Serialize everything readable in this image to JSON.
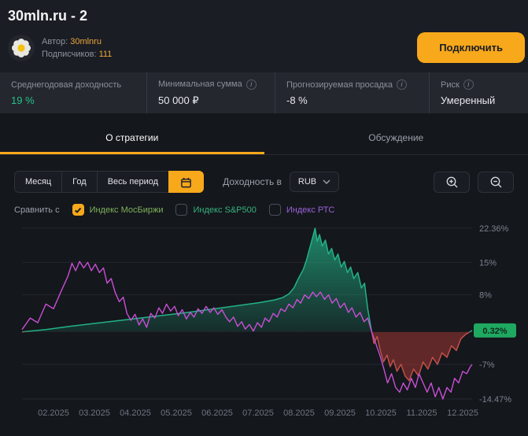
{
  "header": {
    "title": "30mln.ru - 2",
    "author_label": "Автор:",
    "author_name": "30mlnru",
    "subscribers_label": "Подписчиков:",
    "subscribers_count": "111",
    "connect_button": "Подключить",
    "accent_color": "#f7a81b"
  },
  "stats": [
    {
      "label": "Среднегодовая доходность",
      "value": "19 %",
      "value_color": "#25c187"
    },
    {
      "label": "Минимальная сумма",
      "value": "50 000 ₽",
      "value_color": "#e7e9ee"
    },
    {
      "label": "Прогнозируемая просадка",
      "value": "-8 %",
      "value_color": "#e7e9ee"
    },
    {
      "label": "Риск",
      "value": "Умеренный",
      "value_color": "#e7e9ee"
    }
  ],
  "tabs": [
    {
      "label": "О стратегии",
      "active": true
    },
    {
      "label": "Обсуждение",
      "active": false
    }
  ],
  "controls": {
    "period_buttons": [
      {
        "label": "Месяц",
        "active": false
      },
      {
        "label": "Год",
        "active": false
      },
      {
        "label": "Весь период",
        "active": false
      },
      {
        "icon": "calendar-icon",
        "active": true
      }
    ],
    "currency_label": "Доходность в",
    "currency_value": "RUB"
  },
  "compare": {
    "label": "Сравнить с",
    "options": [
      {
        "label": "Индекс МосБиржи",
        "checked": true,
        "color": "#7fb25b"
      },
      {
        "label": "Индекс S&P500",
        "checked": false,
        "color": "#35b37e"
      },
      {
        "label": "Индекс РТС",
        "checked": false,
        "color": "#9a63d8"
      }
    ]
  },
  "chart_data": {
    "type": "area",
    "unit": "%",
    "ylim": [
      -14.47,
      22.36
    ],
    "y_ticks": [
      22.36,
      15,
      8,
      -7,
      -14.47
    ],
    "y_tick_labels": [
      "22.36%",
      "15%",
      "8%",
      "-7%",
      "-14.47%"
    ],
    "current_badge": {
      "label": "0.32%",
      "value": 0.32,
      "bg": "#1fa860",
      "text_color": "#0e2a1c"
    },
    "x_labels": [
      "02.2025",
      "03.2025",
      "04.2025",
      "05.2025",
      "06.2025",
      "07.2025",
      "08.2025",
      "09.2025",
      "10.2025",
      "11.2025",
      "12.2025"
    ],
    "grid_color": "#23272e",
    "negative_fill": "rgba(172,58,52,0.5)",
    "negative_line": "#c0504a",
    "series": [
      {
        "name": "yield-area",
        "type": "area",
        "color": "#22b286",
        "points": [
          [
            0,
            0
          ],
          [
            0.053,
            0.5
          ],
          [
            0.105,
            1.2
          ],
          [
            0.158,
            1.8
          ],
          [
            0.211,
            2.4
          ],
          [
            0.263,
            3.0
          ],
          [
            0.316,
            3.6
          ],
          [
            0.368,
            4.2
          ],
          [
            0.421,
            4.9
          ],
          [
            0.474,
            5.6
          ],
          [
            0.526,
            6.3
          ],
          [
            0.561,
            6.9
          ],
          [
            0.579,
            7.4
          ],
          [
            0.593,
            8.2
          ],
          [
            0.604,
            9.5
          ],
          [
            0.614,
            11.5
          ],
          [
            0.625,
            13.5
          ],
          [
            0.632,
            15.5
          ],
          [
            0.639,
            18.0
          ],
          [
            0.646,
            20.5
          ],
          [
            0.651,
            22.36
          ],
          [
            0.656,
            19.5
          ],
          [
            0.661,
            21.0
          ],
          [
            0.667,
            18.5
          ],
          [
            0.674,
            19.8
          ],
          [
            0.681,
            16.8
          ],
          [
            0.688,
            18.0
          ],
          [
            0.695,
            15.5
          ],
          [
            0.702,
            16.8
          ],
          [
            0.709,
            14.0
          ],
          [
            0.716,
            15.2
          ],
          [
            0.723,
            12.8
          ],
          [
            0.73,
            14.0
          ],
          [
            0.737,
            11.5
          ],
          [
            0.746,
            12.8
          ],
          [
            0.754,
            9.5
          ],
          [
            0.761,
            10.5
          ],
          [
            0.768,
            5.0
          ],
          [
            0.775,
            1.0
          ],
          [
            0.782,
            -2.5
          ],
          [
            0.789,
            -1.0
          ],
          [
            0.796,
            -4.0
          ],
          [
            0.803,
            -6.5
          ],
          [
            0.811,
            -5.0
          ],
          [
            0.818,
            -7.5
          ],
          [
            0.825,
            -6.0
          ],
          [
            0.833,
            -8.5
          ],
          [
            0.842,
            -7.0
          ],
          [
            0.851,
            -9.5
          ],
          [
            0.86,
            -10.5
          ],
          [
            0.87,
            -8.0
          ],
          [
            0.881,
            -9.5
          ],
          [
            0.891,
            -6.5
          ],
          [
            0.902,
            -8.0
          ],
          [
            0.912,
            -5.5
          ],
          [
            0.923,
            -7.0
          ],
          [
            0.933,
            -4.5
          ],
          [
            0.944,
            -5.5
          ],
          [
            0.954,
            -3.0
          ],
          [
            0.965,
            -4.0
          ],
          [
            0.975,
            -1.5
          ],
          [
            0.986,
            -0.5
          ],
          [
            1,
            0.32
          ]
        ]
      },
      {
        "name": "comparison-line",
        "type": "line",
        "color": "#c94fd6",
        "points": [
          [
            0,
            0.5
          ],
          [
            0.018,
            3
          ],
          [
            0.035,
            2
          ],
          [
            0.053,
            6
          ],
          [
            0.07,
            5
          ],
          [
            0.088,
            9
          ],
          [
            0.102,
            12
          ],
          [
            0.111,
            14.8
          ],
          [
            0.119,
            13.2
          ],
          [
            0.128,
            15.2
          ],
          [
            0.137,
            13.8
          ],
          [
            0.146,
            15
          ],
          [
            0.154,
            13.2
          ],
          [
            0.163,
            14.6
          ],
          [
            0.172,
            12.8
          ],
          [
            0.181,
            13.8
          ],
          [
            0.189,
            10.5
          ],
          [
            0.198,
            11.5
          ],
          [
            0.207,
            8.5
          ],
          [
            0.216,
            6.5
          ],
          [
            0.225,
            7.5
          ],
          [
            0.233,
            4
          ],
          [
            0.242,
            2.5
          ],
          [
            0.251,
            3.8
          ],
          [
            0.26,
            1.5
          ],
          [
            0.268,
            2.8
          ],
          [
            0.277,
            1
          ],
          [
            0.286,
            4
          ],
          [
            0.295,
            3
          ],
          [
            0.304,
            5.2
          ],
          [
            0.312,
            4
          ],
          [
            0.321,
            6
          ],
          [
            0.33,
            4.5
          ],
          [
            0.339,
            5.5
          ],
          [
            0.347,
            3.5
          ],
          [
            0.356,
            4.8
          ],
          [
            0.365,
            2.8
          ],
          [
            0.374,
            4.2
          ],
          [
            0.382,
            3.2
          ],
          [
            0.391,
            5
          ],
          [
            0.4,
            4
          ],
          [
            0.409,
            5.5
          ],
          [
            0.418,
            4.2
          ],
          [
            0.426,
            5.2
          ],
          [
            0.435,
            3.8
          ],
          [
            0.444,
            4.8
          ],
          [
            0.453,
            3.2
          ],
          [
            0.461,
            2.2
          ],
          [
            0.47,
            3.2
          ],
          [
            0.479,
            1.2
          ],
          [
            0.488,
            2.2
          ],
          [
            0.496,
            0.6
          ],
          [
            0.505,
            1.6
          ],
          [
            0.514,
            0.2
          ],
          [
            0.523,
            2
          ],
          [
            0.532,
            1
          ],
          [
            0.54,
            3
          ],
          [
            0.549,
            2.2
          ],
          [
            0.558,
            4
          ],
          [
            0.567,
            3.2
          ],
          [
            0.575,
            5
          ],
          [
            0.584,
            4.4
          ],
          [
            0.593,
            6
          ],
          [
            0.602,
            5.2
          ],
          [
            0.611,
            7
          ],
          [
            0.619,
            6.2
          ],
          [
            0.628,
            8
          ],
          [
            0.637,
            7.2
          ],
          [
            0.646,
            8.6
          ],
          [
            0.654,
            7.6
          ],
          [
            0.663,
            8.6
          ],
          [
            0.672,
            7
          ],
          [
            0.681,
            8
          ],
          [
            0.689,
            6.2
          ],
          [
            0.698,
            7.2
          ],
          [
            0.707,
            5.2
          ],
          [
            0.716,
            6.2
          ],
          [
            0.725,
            4.2
          ],
          [
            0.733,
            5.2
          ],
          [
            0.742,
            3.2
          ],
          [
            0.751,
            4.2
          ],
          [
            0.76,
            2.2
          ],
          [
            0.768,
            3
          ],
          [
            0.777,
            0
          ],
          [
            0.786,
            -2.5
          ],
          [
            0.795,
            -5
          ],
          [
            0.804,
            -8
          ],
          [
            0.812,
            -11
          ],
          [
            0.821,
            -9
          ],
          [
            0.83,
            -12
          ],
          [
            0.839,
            -13
          ],
          [
            0.847,
            -11
          ],
          [
            0.856,
            -12.5
          ],
          [
            0.865,
            -10
          ],
          [
            0.874,
            -12
          ],
          [
            0.882,
            -9
          ],
          [
            0.891,
            -11
          ],
          [
            0.9,
            -13
          ],
          [
            0.909,
            -11
          ],
          [
            0.918,
            -14
          ],
          [
            0.926,
            -12
          ],
          [
            0.935,
            -14.47
          ],
          [
            0.944,
            -12
          ],
          [
            0.953,
            -13
          ],
          [
            0.961,
            -10
          ],
          [
            0.97,
            -11
          ],
          [
            0.979,
            -8.5
          ],
          [
            0.988,
            -9
          ],
          [
            0.996,
            -7.5
          ],
          [
            1,
            -7
          ]
        ]
      }
    ]
  }
}
